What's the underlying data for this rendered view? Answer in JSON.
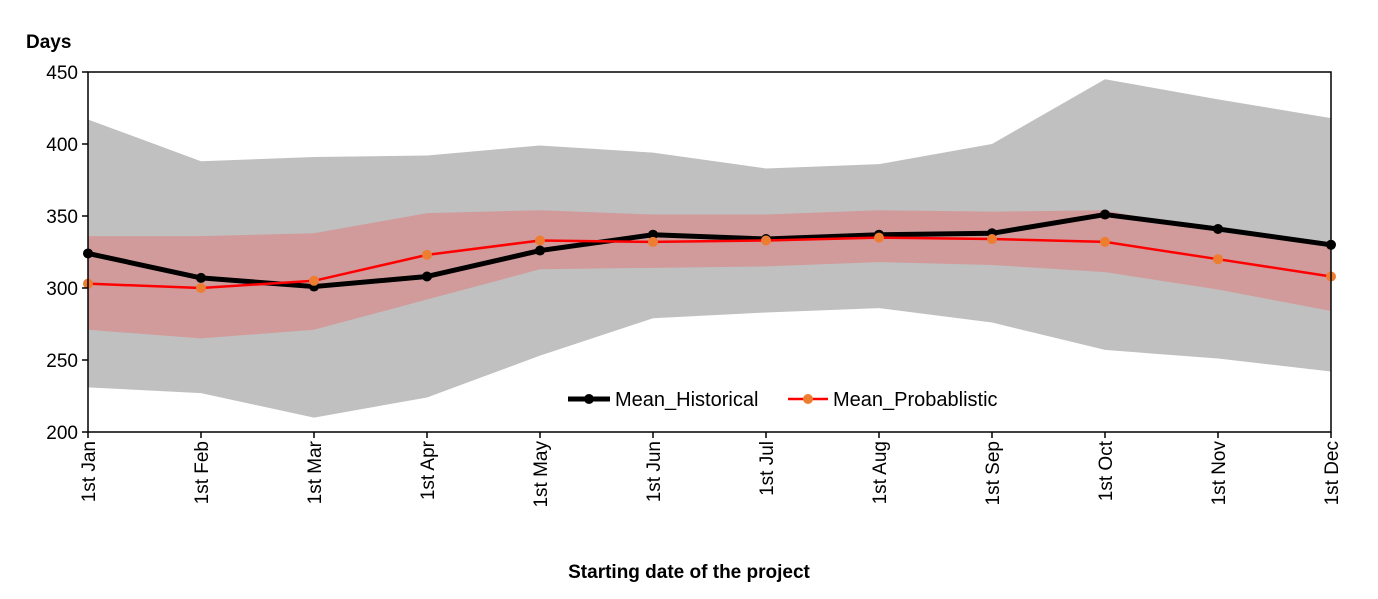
{
  "chart_data": {
    "type": "line",
    "title": "",
    "ylabel": "Days",
    "xlabel": "Starting date of the project",
    "ylim": [
      200,
      450
    ],
    "yticks": [
      200,
      250,
      300,
      350,
      400,
      450
    ],
    "grid": false,
    "legend_position": "bottom-center",
    "categories": [
      "1st Jan",
      "1st Feb",
      "1st Mar",
      "1st Apr",
      "1st May",
      "1st Jun",
      "1st Jul",
      "1st Aug",
      "1st Sep",
      "1st Oct",
      "1st Nov",
      "1st Dec"
    ],
    "bands": [
      {
        "color": "#c0c0c0",
        "lower": [
          231,
          227,
          210,
          224,
          253,
          279,
          283,
          286,
          276,
          257,
          251,
          242
        ],
        "upper": [
          417,
          388,
          391,
          392,
          399,
          394,
          383,
          386,
          400,
          445,
          431,
          418
        ]
      },
      {
        "color": "#d19b9b",
        "lower": [
          271,
          265,
          271,
          292,
          313,
          314,
          315,
          318,
          316,
          311,
          299,
          284
        ],
        "upper": [
          336,
          336,
          338,
          352,
          354,
          351,
          351,
          354,
          353,
          354,
          339,
          329
        ]
      }
    ],
    "series": [
      {
        "name": "Mean_Historical",
        "color": "#000000",
        "values": [
          324,
          307,
          301,
          308,
          326,
          337,
          334,
          337,
          338,
          351,
          341,
          330
        ]
      },
      {
        "name": "Mean_Probablistic",
        "color": "#ff0000",
        "marker_color": "#ed7d31",
        "values": [
          303,
          300,
          305,
          323,
          333,
          332,
          333,
          335,
          334,
          332,
          320,
          308
        ]
      }
    ]
  }
}
